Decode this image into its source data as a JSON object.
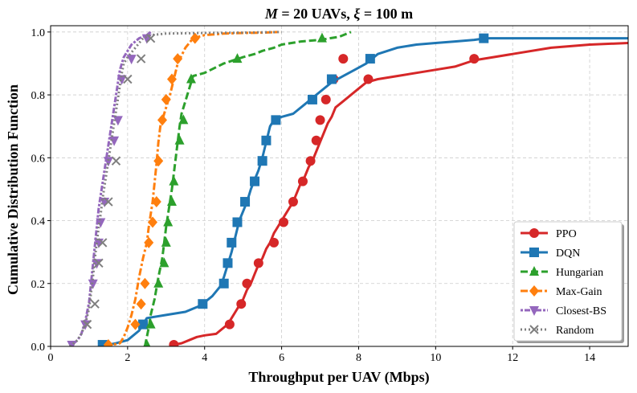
{
  "chart_data": {
    "type": "line",
    "title_italic_var": "M",
    "title_rest": " = 20 UAVs, ",
    "title_italic_var2": "ξ",
    "title_rest2": " = 100 m",
    "xlabel": "Throughput per UAV (Mbps)",
    "ylabel": "Cumulative Distribution Function",
    "xlim": [
      0,
      15
    ],
    "ylim": [
      0,
      1.02
    ],
    "xticks": [
      0,
      2,
      4,
      6,
      8,
      10,
      12,
      14
    ],
    "xtick_labels": [
      "0",
      "2",
      "4",
      "6",
      "8",
      "10",
      "12",
      "14"
    ],
    "yticks": [
      0.0,
      0.2,
      0.4,
      0.6,
      0.8,
      1.0
    ],
    "ytick_labels": [
      "0.0",
      "0.2",
      "0.4",
      "0.6",
      "0.8",
      "1.0"
    ],
    "grid": true,
    "legend_position": "bottom-right",
    "series": [
      {
        "name": "PPO",
        "color": "#d62728",
        "dash": "solid",
        "marker": "circle",
        "x": [
          3.1,
          3.2,
          3.4,
          3.6,
          3.8,
          4.0,
          4.3,
          4.5,
          4.6,
          4.7,
          4.8,
          4.9,
          5.0,
          5.1,
          5.2,
          5.3,
          5.4,
          5.5,
          5.6,
          5.7,
          5.8,
          5.9,
          6.0,
          6.1,
          6.2,
          6.3,
          6.4,
          6.5,
          6.6,
          6.7,
          6.8,
          6.9,
          7.0,
          7.1,
          7.2,
          7.3,
          7.4,
          7.6,
          7.8,
          8.0,
          8.2,
          8.5,
          9.0,
          9.5,
          10.0,
          10.5,
          11.0,
          11.5,
          12.0,
          13.0,
          14.0,
          15.0
        ],
        "y": [
          0.0,
          0.005,
          0.01,
          0.02,
          0.03,
          0.035,
          0.04,
          0.06,
          0.07,
          0.09,
          0.11,
          0.13,
          0.15,
          0.18,
          0.2,
          0.23,
          0.26,
          0.28,
          0.31,
          0.33,
          0.36,
          0.38,
          0.4,
          0.42,
          0.44,
          0.46,
          0.49,
          0.52,
          0.54,
          0.57,
          0.59,
          0.62,
          0.65,
          0.68,
          0.71,
          0.73,
          0.76,
          0.78,
          0.8,
          0.82,
          0.84,
          0.85,
          0.86,
          0.87,
          0.88,
          0.89,
          0.91,
          0.92,
          0.93,
          0.95,
          0.96,
          0.965
        ],
        "marker_x": [
          3.2,
          4.65,
          4.95,
          5.1,
          5.4,
          5.8,
          6.05,
          6.3,
          6.55,
          6.75,
          6.9,
          7.0,
          7.15,
          7.35,
          7.6,
          8.25,
          11.0
        ],
        "marker_y": [
          0.005,
          0.07,
          0.135,
          0.2,
          0.265,
          0.33,
          0.395,
          0.46,
          0.525,
          0.59,
          0.655,
          0.72,
          0.785,
          0.85,
          0.915,
          0.85,
          0.915
        ]
      },
      {
        "name": "DQN",
        "color": "#1f77b4",
        "dash": "solid",
        "marker": "square",
        "x": [
          1.3,
          1.5,
          1.7,
          2.0,
          2.3,
          2.5,
          3.0,
          3.5,
          3.9,
          4.0,
          4.2,
          4.4,
          4.5,
          4.6,
          4.7,
          4.8,
          4.9,
          5.0,
          5.1,
          5.2,
          5.3,
          5.4,
          5.5,
          5.6,
          5.7,
          5.8,
          6.0,
          6.3,
          6.6,
          6.8,
          7.0,
          7.3,
          7.6,
          7.9,
          8.2,
          8.5,
          9.0,
          9.5,
          10.0,
          10.5,
          11.0,
          11.3,
          12.0,
          13.0,
          14.0,
          15.0
        ],
        "y": [
          0.0,
          0.005,
          0.01,
          0.02,
          0.05,
          0.09,
          0.1,
          0.11,
          0.13,
          0.14,
          0.16,
          0.19,
          0.22,
          0.26,
          0.3,
          0.35,
          0.4,
          0.43,
          0.46,
          0.5,
          0.53,
          0.56,
          0.6,
          0.65,
          0.7,
          0.72,
          0.73,
          0.74,
          0.77,
          0.79,
          0.81,
          0.84,
          0.86,
          0.88,
          0.9,
          0.93,
          0.95,
          0.96,
          0.965,
          0.97,
          0.975,
          0.98,
          0.98,
          0.98,
          0.98,
          0.98
        ],
        "marker_x": [
          1.35,
          2.4,
          3.95,
          4.5,
          4.6,
          4.7,
          4.85,
          5.05,
          5.3,
          5.5,
          5.6,
          5.85,
          6.8,
          7.3,
          8.3,
          11.25
        ],
        "marker_y": [
          0.005,
          0.07,
          0.135,
          0.2,
          0.265,
          0.33,
          0.395,
          0.46,
          0.525,
          0.59,
          0.655,
          0.72,
          0.785,
          0.85,
          0.915,
          0.98
        ]
      },
      {
        "name": "Hungarian",
        "color": "#2ca02c",
        "dash": "dashed",
        "marker": "triangle-up",
        "x": [
          2.45,
          2.5,
          2.55,
          2.6,
          2.7,
          2.8,
          2.9,
          2.95,
          3.0,
          3.05,
          3.1,
          3.15,
          3.2,
          3.25,
          3.3,
          3.35,
          3.4,
          3.5,
          3.6,
          3.7,
          4.0,
          4.5,
          5.0,
          5.3,
          5.5,
          5.8,
          6.0,
          6.5,
          7.0,
          7.5,
          7.8
        ],
        "y": [
          0.0,
          0.03,
          0.06,
          0.1,
          0.15,
          0.22,
          0.28,
          0.33,
          0.38,
          0.42,
          0.46,
          0.5,
          0.55,
          0.6,
          0.65,
          0.7,
          0.74,
          0.78,
          0.82,
          0.86,
          0.87,
          0.9,
          0.92,
          0.93,
          0.94,
          0.95,
          0.96,
          0.97,
          0.975,
          0.985,
          1.0
        ],
        "marker_x": [
          2.5,
          2.6,
          2.8,
          2.95,
          3.0,
          3.05,
          3.15,
          3.2,
          3.35,
          3.45,
          3.65,
          4.85,
          7.05
        ],
        "marker_y": [
          0.005,
          0.07,
          0.2,
          0.265,
          0.33,
          0.395,
          0.46,
          0.525,
          0.655,
          0.72,
          0.85,
          0.915,
          0.98
        ]
      },
      {
        "name": "Max-Gain",
        "color": "#ff7f0e",
        "dash": "dashdot",
        "marker": "diamond",
        "x": [
          1.4,
          1.6,
          1.8,
          1.9,
          2.0,
          2.1,
          2.2,
          2.3,
          2.4,
          2.5,
          2.55,
          2.6,
          2.65,
          2.7,
          2.75,
          2.8,
          2.85,
          2.9,
          3.0,
          3.1,
          3.2,
          3.3,
          3.5,
          3.7,
          4.0,
          4.5,
          5.0,
          5.5,
          5.95
        ],
        "y": [
          0.0,
          0.005,
          0.01,
          0.03,
          0.06,
          0.1,
          0.15,
          0.22,
          0.28,
          0.33,
          0.38,
          0.42,
          0.46,
          0.52,
          0.58,
          0.65,
          0.7,
          0.72,
          0.76,
          0.8,
          0.85,
          0.9,
          0.95,
          0.98,
          0.99,
          0.995,
          0.997,
          0.998,
          1.0
        ],
        "marker_x": [
          1.5,
          2.2,
          2.35,
          2.45,
          2.55,
          2.65,
          2.75,
          2.8,
          2.9,
          3.0,
          3.15,
          3.3,
          3.75
        ],
        "marker_y": [
          0.005,
          0.07,
          0.135,
          0.2,
          0.33,
          0.395,
          0.46,
          0.59,
          0.72,
          0.785,
          0.85,
          0.915,
          0.98
        ]
      },
      {
        "name": "Closest-BS",
        "color": "#9467bd",
        "dash": "dotted-dash",
        "marker": "triangle-down",
        "x": [
          0.5,
          0.6,
          0.7,
          0.8,
          0.9,
          1.0,
          1.05,
          1.1,
          1.15,
          1.2,
          1.25,
          1.3,
          1.35,
          1.4,
          1.45,
          1.5,
          1.55,
          1.6,
          1.65,
          1.7,
          1.75,
          1.8,
          1.85,
          1.9,
          2.0,
          2.1,
          2.2,
          2.3,
          2.5,
          2.6
        ],
        "y": [
          0.0,
          0.01,
          0.02,
          0.04,
          0.08,
          0.14,
          0.2,
          0.26,
          0.32,
          0.38,
          0.44,
          0.48,
          0.52,
          0.56,
          0.6,
          0.64,
          0.68,
          0.72,
          0.76,
          0.8,
          0.84,
          0.88,
          0.9,
          0.92,
          0.94,
          0.96,
          0.97,
          0.98,
          0.99,
          1.0
        ],
        "marker_x": [
          0.55,
          0.9,
          1.1,
          1.2,
          1.25,
          1.3,
          1.4,
          1.5,
          1.65,
          1.75,
          1.85,
          2.1,
          2.5
        ],
        "marker_y": [
          0.005,
          0.07,
          0.2,
          0.265,
          0.33,
          0.395,
          0.46,
          0.59,
          0.655,
          0.72,
          0.85,
          0.915,
          0.98
        ]
      },
      {
        "name": "Random",
        "color": "#7f7f7f",
        "dash": "dotted",
        "marker": "x",
        "x": [
          0.5,
          0.6,
          0.7,
          0.8,
          0.9,
          1.0,
          1.05,
          1.1,
          1.15,
          1.2,
          1.25,
          1.3,
          1.35,
          1.4,
          1.45,
          1.5,
          1.55,
          1.6,
          1.65,
          1.7,
          1.75,
          1.8,
          1.85,
          1.9,
          2.0,
          2.2,
          2.4,
          2.6,
          3.0,
          4.0,
          5.0,
          6.0
        ],
        "y": [
          0.0,
          0.01,
          0.02,
          0.04,
          0.07,
          0.12,
          0.17,
          0.22,
          0.28,
          0.33,
          0.38,
          0.42,
          0.47,
          0.51,
          0.55,
          0.59,
          0.63,
          0.67,
          0.71,
          0.75,
          0.79,
          0.83,
          0.87,
          0.9,
          0.92,
          0.95,
          0.98,
          0.99,
          0.995,
          0.997,
          0.998,
          1.0
        ],
        "marker_x": [
          0.95,
          1.15,
          1.25,
          1.35,
          1.5,
          1.7,
          2.0,
          2.35,
          2.6
        ],
        "marker_y": [
          0.07,
          0.135,
          0.265,
          0.33,
          0.46,
          0.59,
          0.85,
          0.915,
          0.98
        ]
      }
    ]
  }
}
